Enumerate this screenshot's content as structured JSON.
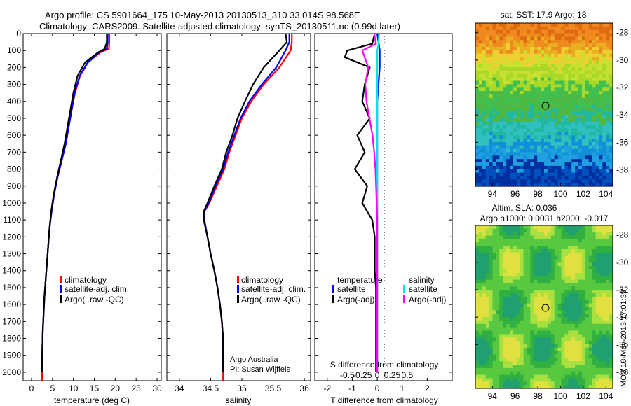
{
  "title": {
    "line1": "Argo profile: CS 5901664_175 10-May-2013 20130513_310 33.014S 98.568E",
    "line2": "Climatology: CARS2009. Satellite-adjusted climatology: synTS_20130511.nc (0.99d later)"
  },
  "colors": {
    "climatology": "#ff0000",
    "satellite": "#0000ff",
    "argo": "#000000",
    "sal_satellite": "#00e5e5",
    "sal_argo": "#ff00ff"
  },
  "panel1": {
    "xlabel": "temperature (deg C)",
    "xticks": [
      "0",
      "5",
      "10",
      "15",
      "20",
      "25",
      "30"
    ],
    "yticks": [
      "0",
      "100",
      "200",
      "300",
      "400",
      "500",
      "600",
      "700",
      "800",
      "900",
      "1000",
      "1100",
      "1200",
      "1300",
      "1400",
      "1500",
      "1600",
      "1700",
      "1800",
      "1900",
      "2000"
    ],
    "legend": [
      "climatology",
      "satellite-adj. clim.",
      "Argo(..raw -QC)"
    ]
  },
  "panel2": {
    "xlabel": "salinity",
    "xticks": [
      "34",
      "34.5",
      "35",
      "35.5",
      "36"
    ],
    "legend": [
      "climatology",
      "satellite-adj. clim.",
      "Argo(..raw -QC)"
    ],
    "note1": "Argo Australia",
    "note2": "PI: Susan Wijffels"
  },
  "panel3": {
    "xlabel": "T difference from climatology",
    "xticks": [
      "-2",
      "-1",
      "0",
      "1",
      "2"
    ],
    "top_label": "S difference from climatology",
    "top_ticks": [
      "-0.5",
      "-0.25",
      "0",
      "0.25",
      "0.5"
    ],
    "legend_t_title": "temperature",
    "legend_s_title": "salinity",
    "legend_t": [
      "satellite",
      "Argo(-adj)"
    ],
    "legend_s": [
      "satellite",
      "Argo(-adj)"
    ]
  },
  "map1": {
    "title": "sat. SST: 17.9 Argo: 18",
    "xticks": [
      "94",
      "96",
      "98",
      "100",
      "102",
      "104"
    ],
    "yticks": [
      "-28",
      "-30",
      "-32",
      "-34",
      "-36",
      "-38"
    ]
  },
  "map2": {
    "title1": "Altim. SLA: 0.036",
    "title2": "Argo h1000: 0.0031 h2000: -0.017",
    "xticks": [
      "94",
      "96",
      "98",
      "100",
      "102",
      "104"
    ],
    "yticks": [
      "-28",
      "-30",
      "-32",
      "-34",
      "-36",
      "-38"
    ]
  },
  "side_text": "IMOS 18-May-2013 17:01:39",
  "chart_data": [
    {
      "type": "line",
      "xlabel": "temperature (deg C)",
      "xlim": [
        -2,
        31
      ],
      "ylim": [
        2050,
        0
      ],
      "series": [
        {
          "name": "climatology",
          "x": [
            18.6,
            18.6,
            18.5,
            16.5,
            13.5,
            11.6,
            10.4,
            9.6,
            8.9,
            8.2,
            7.2,
            6.2,
            5.4,
            4.8,
            4.3,
            4.0,
            3.7,
            3.4,
            3.1,
            2.9,
            2.7,
            2.6,
            2.5
          ],
          "y": [
            0,
            50,
            90,
            110,
            170,
            250,
            350,
            450,
            550,
            650,
            750,
            850,
            950,
            1050,
            1150,
            1250,
            1350,
            1450,
            1550,
            1650,
            1750,
            1850,
            2050
          ]
        },
        {
          "name": "satellite-adj. clim.",
          "x": [
            18.2,
            18.2,
            18.0,
            16.2,
            13.4,
            11.5,
            10.3,
            9.6,
            8.9,
            8.2,
            7.2,
            6.2,
            5.4,
            4.8,
            4.3,
            4.0,
            3.7,
            3.4,
            3.1,
            2.9,
            2.7,
            2.6,
            2.5
          ],
          "y": [
            0,
            50,
            90,
            110,
            170,
            250,
            350,
            450,
            550,
            650,
            750,
            850,
            950,
            1050,
            1150,
            1250,
            1350,
            1450,
            1550,
            1650,
            1750,
            1850,
            2000
          ]
        },
        {
          "name": "Argo(..raw -QC)",
          "x": [
            18.0,
            18.0,
            17.5,
            16.0,
            12.8,
            11.0,
            10.0,
            9.3,
            8.6,
            7.9,
            7.0,
            6.1,
            5.3,
            4.7,
            4.3,
            4.0,
            3.7,
            3.4,
            3.1,
            2.9,
            2.7,
            2.6,
            2.5
          ],
          "y": [
            0,
            50,
            90,
            110,
            170,
            250,
            350,
            450,
            550,
            650,
            750,
            850,
            950,
            1050,
            1150,
            1250,
            1350,
            1450,
            1550,
            1650,
            1750,
            1850,
            2000
          ]
        }
      ]
    },
    {
      "type": "line",
      "xlabel": "salinity",
      "xlim": [
        33.8,
        36.1
      ],
      "ylim": [
        2050,
        0
      ],
      "series": [
        {
          "name": "climatology",
          "x": [
            35.8,
            35.8,
            35.78,
            35.6,
            35.35,
            35.15,
            35.0,
            34.9,
            34.8,
            34.72,
            34.6,
            34.48,
            34.4,
            34.4,
            34.45,
            34.5,
            34.56,
            34.61,
            34.65,
            34.68,
            34.7,
            34.7
          ],
          "y": [
            0,
            50,
            100,
            200,
            300,
            400,
            500,
            600,
            700,
            800,
            900,
            1000,
            1050,
            1100,
            1200,
            1300,
            1400,
            1500,
            1600,
            1700,
            1800,
            2050
          ]
        },
        {
          "name": "satellite-adj. clim.",
          "x": [
            35.76,
            35.76,
            35.7,
            35.55,
            35.32,
            35.12,
            34.98,
            34.88,
            34.78,
            34.7,
            34.58,
            34.47,
            34.4,
            34.4,
            34.45,
            34.5,
            34.56,
            34.61,
            34.65,
            34.68,
            34.7,
            34.7
          ],
          "y": [
            0,
            50,
            100,
            200,
            300,
            400,
            500,
            600,
            700,
            800,
            900,
            1000,
            1050,
            1100,
            1200,
            1300,
            1400,
            1500,
            1600,
            1700,
            1800,
            2000
          ]
        },
        {
          "name": "Argo(..raw -QC)",
          "x": [
            35.7,
            35.72,
            35.6,
            35.35,
            35.18,
            35.05,
            34.93,
            34.85,
            34.75,
            34.68,
            34.56,
            34.45,
            34.39,
            34.39,
            34.45,
            34.5,
            34.56,
            34.61,
            34.65,
            34.68,
            34.7,
            34.7
          ],
          "y": [
            0,
            50,
            100,
            200,
            300,
            400,
            500,
            600,
            700,
            800,
            900,
            1000,
            1050,
            1100,
            1200,
            1300,
            1400,
            1500,
            1600,
            1700,
            1800,
            2000
          ]
        }
      ]
    },
    {
      "type": "line",
      "xlabel": "T difference from climatology",
      "xlim": [
        -2.5,
        3
      ],
      "ylim": [
        2050,
        0
      ],
      "series": [
        {
          "name": "temperature satellite",
          "x": [
            0,
            0.05,
            0.1,
            0.1,
            0.05,
            0,
            0,
            0,
            0,
            0,
            0,
            0,
            0,
            0,
            0,
            0,
            0,
            0,
            0,
            0
          ],
          "y": [
            0,
            50,
            100,
            200,
            300,
            400,
            500,
            600,
            700,
            800,
            900,
            1000,
            1100,
            1200,
            1300,
            1400,
            1500,
            1600,
            1800,
            2000
          ]
        },
        {
          "name": "temperature Argo(-adj)",
          "x": [
            -0.1,
            -0.2,
            -1.2,
            -1.3,
            -0.3,
            -0.5,
            -0.6,
            -0.3,
            -0.8,
            -0.5,
            -0.9,
            -0.4,
            -0.6,
            -0.2,
            -0.1,
            -0.1,
            -0.1,
            -0.05,
            -0.05,
            -0.05,
            -0.05
          ],
          "y": [
            0,
            60,
            100,
            140,
            200,
            300,
            400,
            500,
            600,
            700,
            800,
            900,
            1000,
            1100,
            1200,
            1300,
            1400,
            1500,
            1600,
            1800,
            2000
          ]
        },
        {
          "name": "salinity satellite",
          "x": [
            0.03,
            0.02,
            0.0,
            0.0,
            0.0,
            0.0,
            0.0,
            0.0,
            0.0,
            0.0,
            0.0,
            0.0,
            0.0,
            0.0,
            0.0,
            0.0,
            0.0
          ],
          "y": [
            0,
            60,
            100,
            200,
            300,
            400,
            500,
            600,
            700,
            800,
            900,
            1000,
            1100,
            1200,
            1400,
            1600,
            2000
          ]
        },
        {
          "name": "salinity Argo(-adj)",
          "x": [
            -0.05,
            -0.02,
            -0.25,
            -0.15,
            -0.2,
            -0.18,
            -0.13,
            -0.08,
            -0.05,
            -0.03,
            -0.02,
            -0.01,
            0,
            0,
            0,
            0,
            0
          ],
          "y": [
            0,
            60,
            100,
            200,
            300,
            400,
            500,
            600,
            700,
            800,
            900,
            1000,
            1100,
            1200,
            1400,
            1600,
            2000
          ]
        }
      ]
    },
    {
      "type": "heatmap",
      "title": "sat. SST: 17.9 Argo: 18",
      "xlim": [
        92.5,
        104.6
      ],
      "ylim": [
        -39.2,
        -27.3
      ],
      "marker": [
        98.568,
        -33.014
      ]
    },
    {
      "type": "heatmap",
      "title": "Altim. SLA: 0.036",
      "xlim": [
        92.5,
        104.6
      ],
      "ylim": [
        -39.2,
        -27.3
      ],
      "marker": [
        98.568,
        -33.014
      ]
    }
  ]
}
